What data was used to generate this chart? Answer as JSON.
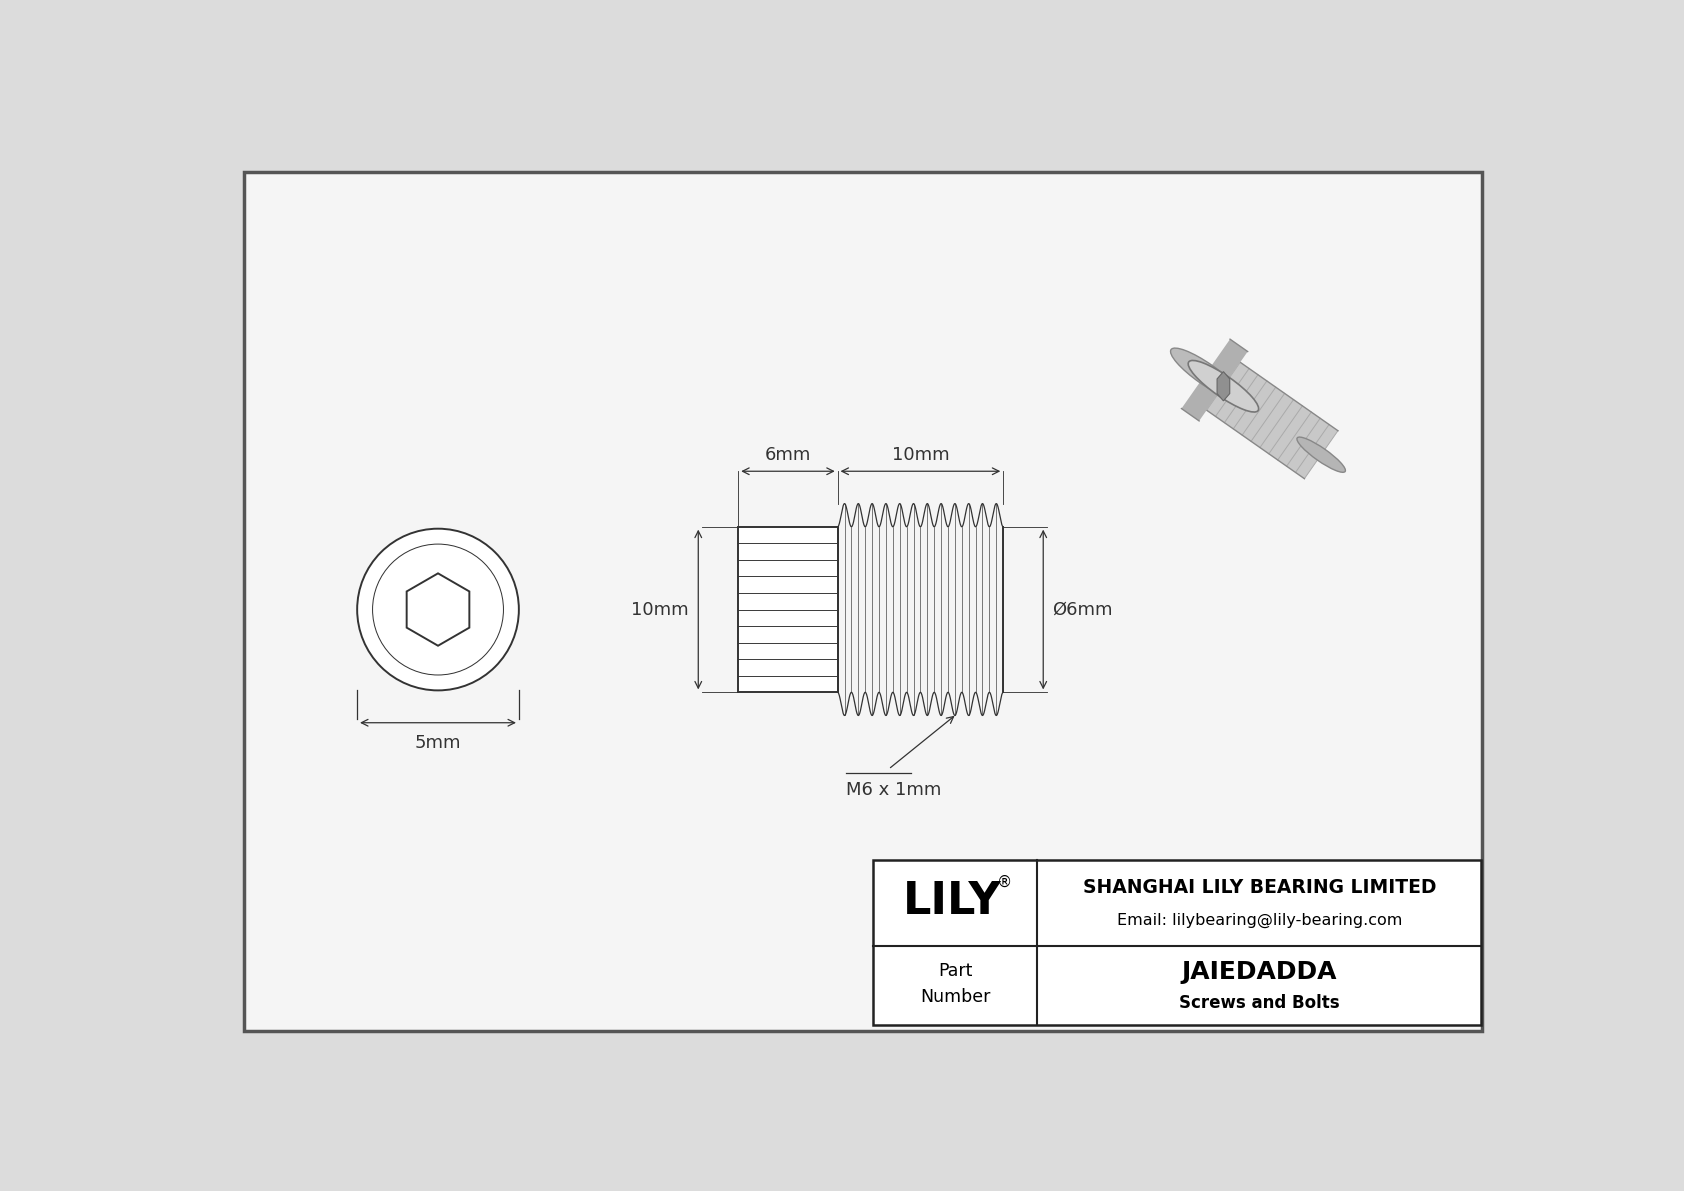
{
  "bg_color": "#dcdcdc",
  "drawing_bg": "#f5f5f5",
  "border_color": "#555555",
  "line_color": "#333333",
  "company": "SHANGHAI LILY BEARING LIMITED",
  "email": "Email: lilybearing@lily-bearing.com",
  "part_number": "JAIEDADDA",
  "part_category": "Screws and Bolts",
  "brand": "LILY",
  "dim_head_width": "6mm",
  "dim_thread_length": "10mm",
  "dim_height": "10mm",
  "dim_thread_label": "M6 x 1mm",
  "dim_end_diameter": "Ø6mm",
  "dim_front_width": "5mm",
  "dim_fontsize": 13
}
